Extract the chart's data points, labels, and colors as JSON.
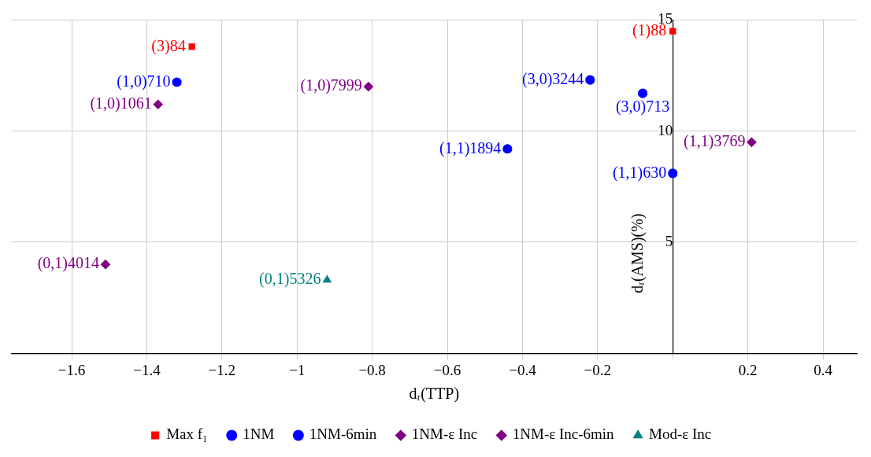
{
  "chart_data": {
    "type": "scatter",
    "xlabel": "dᵣ(TTP)",
    "ylabel": "dᵣ(AMS)(%)",
    "xlim": [
      -1.76,
      0.49
    ],
    "ylim": [
      0,
      15
    ],
    "xticks": [
      -1.6,
      -1.4,
      -1.2,
      -1,
      -0.8,
      -0.6,
      -0.4,
      -0.2,
      {
        "value": 0,
        "label": null
      },
      0.2,
      0.4
    ],
    "yticks": [
      {
        "value": 0,
        "label": null
      },
      5,
      10,
      15
    ],
    "grid": true,
    "legend": "bottom",
    "series": [
      {
        "name": "Max f₁",
        "color": "#ff0000",
        "marker": "square",
        "x": [
          -1.28,
          0
        ],
        "values": [
          13.8,
          14.5
        ],
        "value_labels": [
          "(3)84",
          "(1)88"
        ]
      },
      {
        "name": "1NM",
        "color": "#0000ff",
        "marker": "circle",
        "x": [
          -0.22,
          -0.44
        ],
        "values": [
          12.3,
          9.2
        ],
        "value_labels": [
          "(3,0)3244",
          "(1,1)1894"
        ]
      },
      {
        "name": "1NM-6min",
        "color": "#0000ff",
        "marker": "circle",
        "x": [
          -1.32,
          -0.08,
          0
        ],
        "values": [
          12.2,
          11.7,
          8.1
        ],
        "value_labels": [
          "(1,0)710",
          "(3,0)713",
          "(1,1)630"
        ]
      },
      {
        "name": "1NM-ε Inc",
        "color": "#800080",
        "marker": "diamond",
        "x": [
          -0.81,
          0.21,
          -1.51
        ],
        "values": [
          12,
          9.5,
          4
        ],
        "value_labels": [
          "(1,0)7999",
          "(1,1)3769",
          "(0,1)4014"
        ]
      },
      {
        "name": "1NM-ε Inc-6min",
        "color": "#800080",
        "marker": "diamond",
        "x": [
          -1.37
        ],
        "values": [
          11.2
        ],
        "value_labels": [
          "(1,0)1061"
        ]
      },
      {
        "name": "Mod-ε Inc",
        "color": "#008080",
        "marker": "triangle",
        "x": [
          -0.92
        ],
        "values": [
          3.3
        ],
        "value_labels": [
          "(0,1)5326"
        ]
      }
    ]
  }
}
